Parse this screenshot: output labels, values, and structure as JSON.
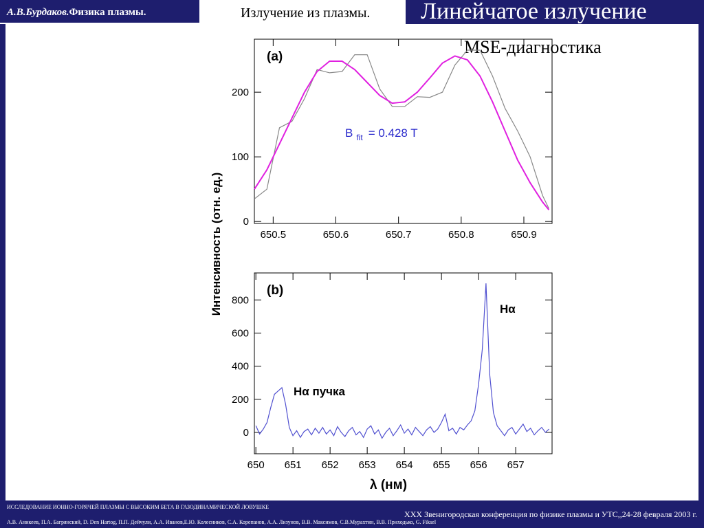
{
  "header": {
    "author": "А.В.Бурдаков.",
    "course": "Физика плазмы.",
    "section": "Излучение из плазмы.",
    "title": "Линейчатое излучение"
  },
  "subtitle": "MSE-диагностика",
  "chart_data": [
    {
      "type": "line",
      "label": "(a)",
      "ylabel": "Интенсивность (отн. ед.)",
      "fit_label": {
        "symbol": "B",
        "subscript": "fit",
        "text": "= 0.428 T"
      },
      "x": [
        650.47,
        650.49,
        650.51,
        650.53,
        650.55,
        650.57,
        650.59,
        650.61,
        650.63,
        650.65,
        650.67,
        650.69,
        650.71,
        650.73,
        650.75,
        650.77,
        650.79,
        650.81,
        650.83,
        650.85,
        650.87,
        650.89,
        650.91,
        650.93,
        650.94
      ],
      "series": [
        {
          "color": "#888888",
          "values": [
            35,
            50,
            145,
            155,
            190,
            235,
            230,
            232,
            258,
            258,
            205,
            178,
            178,
            193,
            192,
            200,
            242,
            265,
            265,
            225,
            175,
            140,
            100,
            40,
            20
          ]
        },
        {
          "color": "#e020e0",
          "values": [
            50,
            80,
            120,
            160,
            200,
            232,
            248,
            248,
            235,
            215,
            195,
            183,
            185,
            200,
            222,
            245,
            256,
            250,
            225,
            185,
            140,
            95,
            60,
            30,
            18
          ]
        }
      ],
      "xlim": [
        650.47,
        650.945
      ],
      "xticks": [
        650.5,
        650.6,
        650.7,
        650.8,
        650.9
      ],
      "ylim": [
        -3,
        282
      ],
      "yticks": [
        0,
        100,
        200
      ]
    },
    {
      "type": "line",
      "label": "(b)",
      "xlabel": "λ (нм)",
      "annotations": [
        "Hα",
        "Hα пучка"
      ],
      "x": [
        650.0,
        650.1,
        650.2,
        650.3,
        650.4,
        650.5,
        650.6,
        650.7,
        650.8,
        650.9,
        651.0,
        651.1,
        651.2,
        651.3,
        651.4,
        651.5,
        651.6,
        651.7,
        651.8,
        651.9,
        652.0,
        652.1,
        652.2,
        652.3,
        652.4,
        652.5,
        652.6,
        652.7,
        652.8,
        652.9,
        653.0,
        653.1,
        653.2,
        653.3,
        653.4,
        653.5,
        653.6,
        653.7,
        653.8,
        653.9,
        654.0,
        654.1,
        654.2,
        654.3,
        654.4,
        654.5,
        654.6,
        654.7,
        654.8,
        654.9,
        655.0,
        655.1,
        655.2,
        655.3,
        655.4,
        655.5,
        655.6,
        655.7,
        655.8,
        655.9,
        656.0,
        656.1,
        656.2,
        656.3,
        656.4,
        656.5,
        656.6,
        656.7,
        656.8,
        656.9,
        657.0,
        657.1,
        657.2,
        657.3,
        657.4,
        657.5,
        657.6,
        657.7,
        657.8,
        657.9
      ],
      "series": [
        {
          "color": "#5050d0",
          "values": [
            40,
            -10,
            20,
            60,
            150,
            230,
            250,
            270,
            170,
            30,
            -20,
            10,
            -30,
            5,
            20,
            -15,
            25,
            -5,
            30,
            -10,
            15,
            -20,
            35,
            0,
            -25,
            10,
            30,
            -15,
            5,
            -30,
            20,
            40,
            -10,
            15,
            -35,
            0,
            25,
            -20,
            10,
            45,
            -5,
            20,
            -15,
            30,
            5,
            -20,
            15,
            35,
            0,
            20,
            60,
            110,
            10,
            25,
            -10,
            30,
            15,
            45,
            70,
            130,
            290,
            500,
            900,
            350,
            120,
            40,
            10,
            -20,
            15,
            30,
            -10,
            20,
            50,
            5,
            25,
            -15,
            10,
            30,
            0,
            20
          ]
        }
      ],
      "xlim": [
        649.96,
        657.98
      ],
      "xticks": [
        650,
        651,
        652,
        653,
        654,
        655,
        656,
        657
      ],
      "ylim": [
        -129,
        963
      ],
      "yticks": [
        0,
        200,
        400,
        600,
        800
      ]
    }
  ],
  "footer": {
    "project": "ИССЛЕДОВАНИЕ ИОННО-ГОРЯЧЕЙ ПЛАЗМЫ С ВЫСОКИМ БЕТА В ГАЗОДИНАМИЧЕСКОЙ ЛОВУШКЕ",
    "conference": "XXX Звенигородская конференция по физике плазмы и УТС,,24-28 февраля 2003 г.",
    "authors": "А.В. Аникеев, П.А. Багрянский, D. Den Hartog, П.П. Дейчули, А.А. Иванов,Е.Ю. Колесников, С.А. Корепанов, А.А. Лизунов, В.В. Максимов, С.В.Мурахтин, В.В. Приходько, G. Fiksel"
  }
}
